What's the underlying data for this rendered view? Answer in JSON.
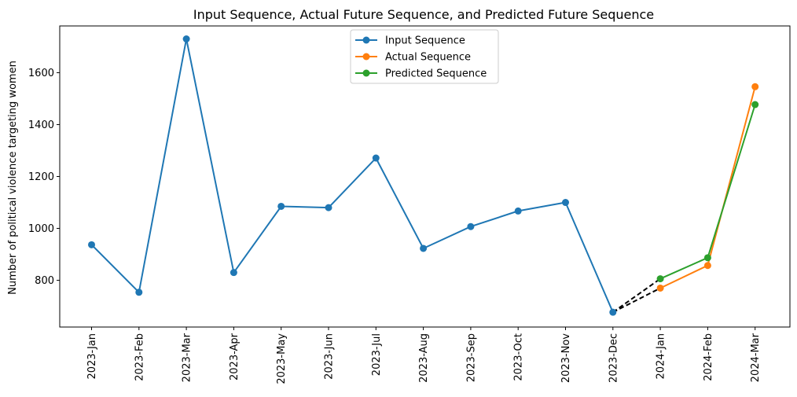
{
  "chart_data": {
    "type": "line",
    "title": "Input Sequence, Actual Future Sequence, and Predicted Future Sequence",
    "xlabel": "",
    "ylabel": "Number of political violence targeting women",
    "categories": [
      "2023-Jan",
      "2023-Feb",
      "2023-Mar",
      "2023-Apr",
      "2023-May",
      "2023-Jun",
      "2023-Jul",
      "2023-Aug",
      "2023-Sep",
      "2023-Oct",
      "2023-Nov",
      "2023-Dec",
      "2024-Jan",
      "2024-Feb",
      "2024-Mar"
    ],
    "yticks": [
      800,
      1000,
      1200,
      1400,
      1600
    ],
    "ylim": [
      620,
      1780
    ],
    "legend_position": "top-center",
    "series": [
      {
        "name": "Input Sequence",
        "color": "#1f77b4",
        "x": [
          "2023-Jan",
          "2023-Feb",
          "2023-Mar",
          "2023-Apr",
          "2023-May",
          "2023-Jun",
          "2023-Jul",
          "2023-Aug",
          "2023-Sep",
          "2023-Oct",
          "2023-Nov",
          "2023-Dec"
        ],
        "values": [
          937,
          754,
          1730,
          830,
          1085,
          1080,
          1271,
          923,
          1007,
          1067,
          1100,
          677
        ]
      },
      {
        "name": "Actual Sequence",
        "color": "#ff7f0e",
        "x": [
          "2024-Jan",
          "2024-Feb",
          "2024-Mar"
        ],
        "values": [
          770,
          857,
          1546
        ]
      },
      {
        "name": "Predicted Sequence",
        "color": "#2ca02c",
        "x": [
          "2024-Jan",
          "2024-Feb",
          "2024-Mar"
        ],
        "values": [
          806,
          887,
          1477
        ]
      }
    ],
    "connectors": {
      "style": "dashed",
      "color": "#000000",
      "from": "2023-Dec",
      "to_series": [
        "Actual Sequence",
        "Predicted Sequence"
      ]
    }
  }
}
